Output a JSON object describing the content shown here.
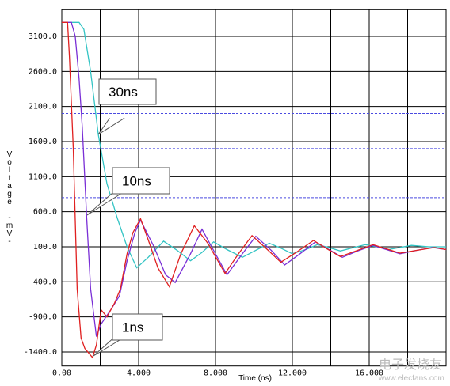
{
  "chart_data": {
    "type": "line",
    "x_label": "Time (ns)",
    "y_label": "Voltage -mV-",
    "xlim": [
      0,
      20
    ],
    "ylim": [
      -1600,
      3480
    ],
    "xticks": [
      {
        "value": 0,
        "label": "0.00"
      },
      {
        "value": 4,
        "label": "4.000"
      },
      {
        "value": 8,
        "label": "8.000"
      },
      {
        "value": 12,
        "label": "12.000"
      },
      {
        "value": 16,
        "label": "16.000"
      }
    ],
    "x_minor_grid": [
      2,
      6,
      10,
      14,
      18,
      20
    ],
    "yticks": [
      {
        "value": 3100,
        "label": "3100.0"
      },
      {
        "value": 2600,
        "label": "2600.0"
      },
      {
        "value": 2100,
        "label": "2100.0"
      },
      {
        "value": 1600,
        "label": "1600.0"
      },
      {
        "value": 1100,
        "label": "1100.0"
      },
      {
        "value": 600,
        "label": "600.0"
      },
      {
        "value": 100,
        "label": "100.0"
      },
      {
        "value": -400,
        "label": "-400.0"
      },
      {
        "value": -900,
        "label": "-900.0"
      },
      {
        "value": -1400,
        "label": "-1400.0"
      }
    ],
    "grid": true,
    "threshold_lines": {
      "color": "#4a4ae0",
      "values": [
        2000,
        1500,
        800
      ]
    },
    "series": [
      {
        "name": "30ns",
        "color": "#33c4c4",
        "x": [
          0,
          0.9,
          1.15,
          1.5,
          1.9,
          2.35,
          2.9,
          3.4,
          3.9,
          4.5,
          5.3,
          6.0,
          6.7,
          7.3,
          7.9,
          8.6,
          9.4,
          10.1,
          10.8,
          11.4,
          12.0,
          12.7,
          13.3,
          13.9,
          14.5,
          15.2,
          15.8,
          16.4,
          17.0,
          17.6,
          18.2,
          19.1,
          20
        ],
        "values": [
          3300,
          3300,
          3200,
          2600,
          1700,
          1000,
          500,
          100,
          -200,
          -50,
          180,
          50,
          -100,
          20,
          170,
          60,
          -50,
          50,
          150,
          80,
          0,
          60,
          130,
          90,
          40,
          90,
          130,
          100,
          60,
          90,
          120,
          100,
          100
        ]
      },
      {
        "name": "10ns",
        "color": "#7a2fd6",
        "x": [
          0,
          0.5,
          0.7,
          0.9,
          1.07,
          1.3,
          1.5,
          1.8,
          2.05,
          2.55,
          3.0,
          3.4,
          3.8,
          4.1,
          4.8,
          5.4,
          5.9,
          6.7,
          7.3,
          7.8,
          8.6,
          9.4,
          10.1,
          10.9,
          11.6,
          12.4,
          13.2,
          13.9,
          14.6,
          15.4,
          16.2,
          16.9,
          17.6,
          18.5,
          19.3,
          20
        ],
        "values": [
          3300,
          3300,
          3100,
          2500,
          1800,
          500,
          -500,
          -1180,
          -1000,
          -800,
          -600,
          -100,
          300,
          480,
          100,
          -300,
          -410,
          0,
          350,
          100,
          -300,
          0,
          250,
          50,
          -160,
          0,
          170,
          60,
          -50,
          40,
          120,
          60,
          0,
          50,
          90,
          60
        ]
      },
      {
        "name": "1ns",
        "color": "#e02020",
        "x": [
          0,
          0.3,
          0.4,
          0.6,
          0.8,
          1.0,
          1.2,
          1.6,
          1.8,
          2.05,
          2.35,
          2.75,
          3.05,
          3.4,
          3.7,
          4.1,
          4.5,
          5.0,
          5.6,
          6.2,
          6.9,
          7.6,
          8.5,
          9.2,
          9.9,
          10.7,
          11.4,
          12.2,
          13.1,
          13.8,
          14.5,
          15.3,
          16.2,
          16.9,
          17.6,
          18.5,
          19.4,
          20
        ],
        "values": [
          3300,
          3300,
          2800,
          1500,
          -500,
          -1200,
          -1350,
          -1480,
          -1300,
          -800,
          -900,
          -700,
          -500,
          0,
          300,
          500,
          200,
          -200,
          -470,
          0,
          400,
          150,
          -280,
          0,
          260,
          60,
          -120,
          20,
          190,
          70,
          -40,
          40,
          130,
          70,
          10,
          50,
          90,
          60
        ]
      }
    ],
    "annotations": [
      "30ns",
      "10ns",
      "1ns"
    ],
    "watermark": [
      "电子发烧友",
      "www.elecfans.com"
    ]
  }
}
